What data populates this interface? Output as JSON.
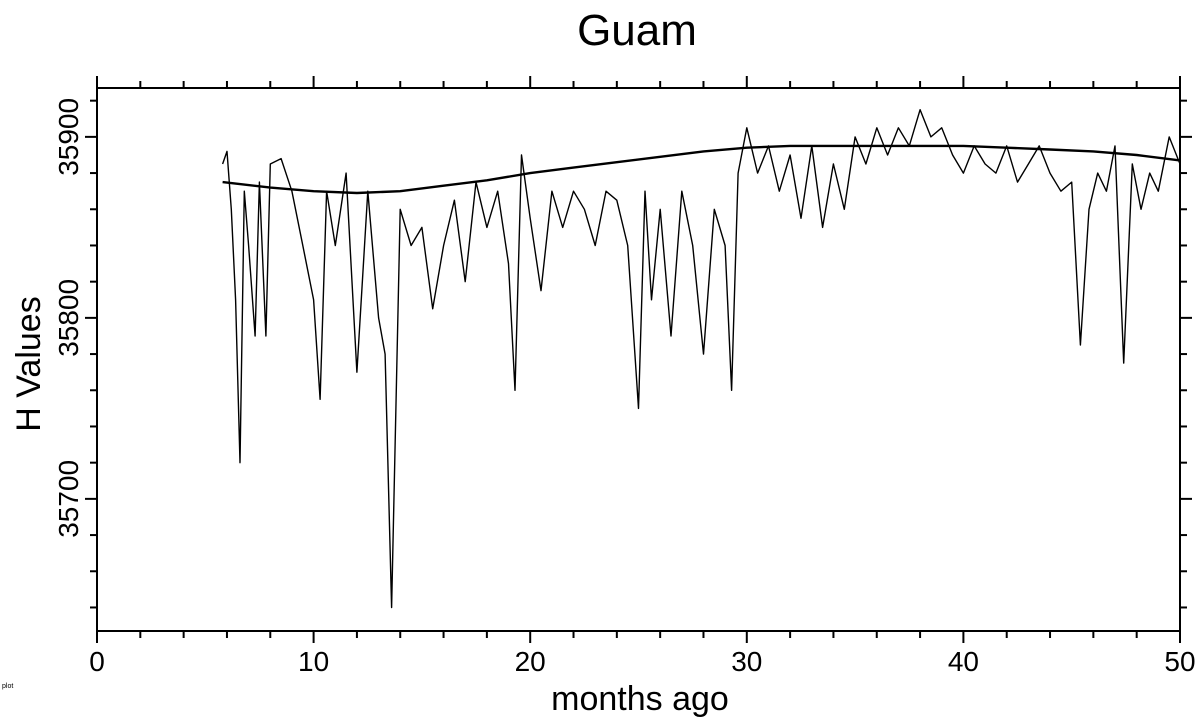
{
  "chart_data": {
    "type": "line",
    "title": "Guam",
    "xlabel": "months ago",
    "ylabel": "H Values",
    "corner_label": "plot",
    "xlim": [
      0,
      50
    ],
    "ylim": [
      35627,
      35927
    ],
    "x_ticks": [
      "0",
      "10",
      "20",
      "30",
      "40",
      "50"
    ],
    "y_ticks": [
      "35700",
      "35800",
      "35900"
    ],
    "grid": false,
    "line_color": "#000000",
    "series": [
      {
        "x": [
          5.8,
          6.0,
          6.2,
          6.4,
          6.6,
          6.8,
          7.0,
          7.3,
          7.5,
          7.8,
          8.0,
          8.5,
          9.0,
          9.5,
          10.0,
          10.3,
          10.6,
          11.0,
          11.5,
          12.0,
          12.5,
          13.0,
          13.3,
          13.6,
          14.0,
          14.5,
          15.0,
          15.5,
          16.0,
          16.5,
          17.0,
          17.5,
          18.0,
          18.5,
          19.0,
          19.3,
          19.6,
          20.0,
          20.5,
          21.0,
          21.5,
          22.0,
          22.5,
          23.0,
          23.5,
          24.0,
          24.5,
          25.0,
          25.3,
          25.6,
          26.0,
          26.5,
          27.0,
          27.5,
          28.0,
          28.5,
          29.0,
          29.3,
          29.6,
          30.0,
          30.5,
          31.0,
          31.5,
          32.0,
          32.5,
          33.0,
          33.5,
          34.0,
          34.5,
          35.0,
          35.5,
          36.0,
          36.5,
          37.0,
          37.5,
          38.0,
          38.5,
          39.0,
          39.5,
          40.0,
          40.5,
          41.0,
          41.5,
          42.0,
          42.5,
          43.0,
          43.5,
          44.0,
          44.5,
          45.0,
          45.4,
          45.8,
          46.2,
          46.6,
          47.0,
          47.4,
          47.8,
          48.2,
          48.6,
          49.0,
          49.5,
          50.0
        ],
        "values": [
          35885,
          35892,
          35860,
          35810,
          35720,
          35870,
          35840,
          35790,
          35875,
          35790,
          35885,
          35888,
          35870,
          35840,
          35810,
          35755,
          35870,
          35840,
          35880,
          35770,
          35870,
          35800,
          35780,
          35640,
          35860,
          35840,
          35850,
          35805,
          35840,
          35865,
          35820,
          35875,
          35850,
          35870,
          35830,
          35760,
          35890,
          35855,
          35815,
          35870,
          35850,
          35870,
          35860,
          35840,
          35870,
          35865,
          35840,
          35750,
          35870,
          35810,
          35860,
          35790,
          35870,
          35840,
          35780,
          35860,
          35840,
          35760,
          35880,
          35905,
          35880,
          35895,
          35870,
          35890,
          35855,
          35895,
          35850,
          35885,
          35860,
          35900,
          35885,
          35905,
          35890,
          35905,
          35895,
          35915,
          35900,
          35905,
          35890,
          35880,
          35895,
          35885,
          35880,
          35895,
          35875,
          35885,
          35895,
          35880,
          35870,
          35875,
          35785,
          35860,
          35880,
          35870,
          35895,
          35775,
          35885,
          35860,
          35880,
          35870,
          35900,
          35885
        ]
      },
      {
        "x": [
          5.8,
          8.0,
          10.0,
          12.0,
          14.0,
          16.0,
          18.0,
          20.0,
          22.0,
          24.0,
          26.0,
          28.0,
          30.0,
          32.0,
          34.0,
          36.0,
          38.0,
          40.0,
          42.0,
          44.0,
          46.0,
          48.0,
          50.0
        ],
        "values": [
          35875,
          35872,
          35870,
          35869,
          35870,
          35873,
          35876,
          35880,
          35883,
          35886,
          35889,
          35892,
          35894,
          35895,
          35895,
          35895,
          35895,
          35895,
          35894,
          35893,
          35892,
          35890,
          35887
        ]
      }
    ]
  }
}
